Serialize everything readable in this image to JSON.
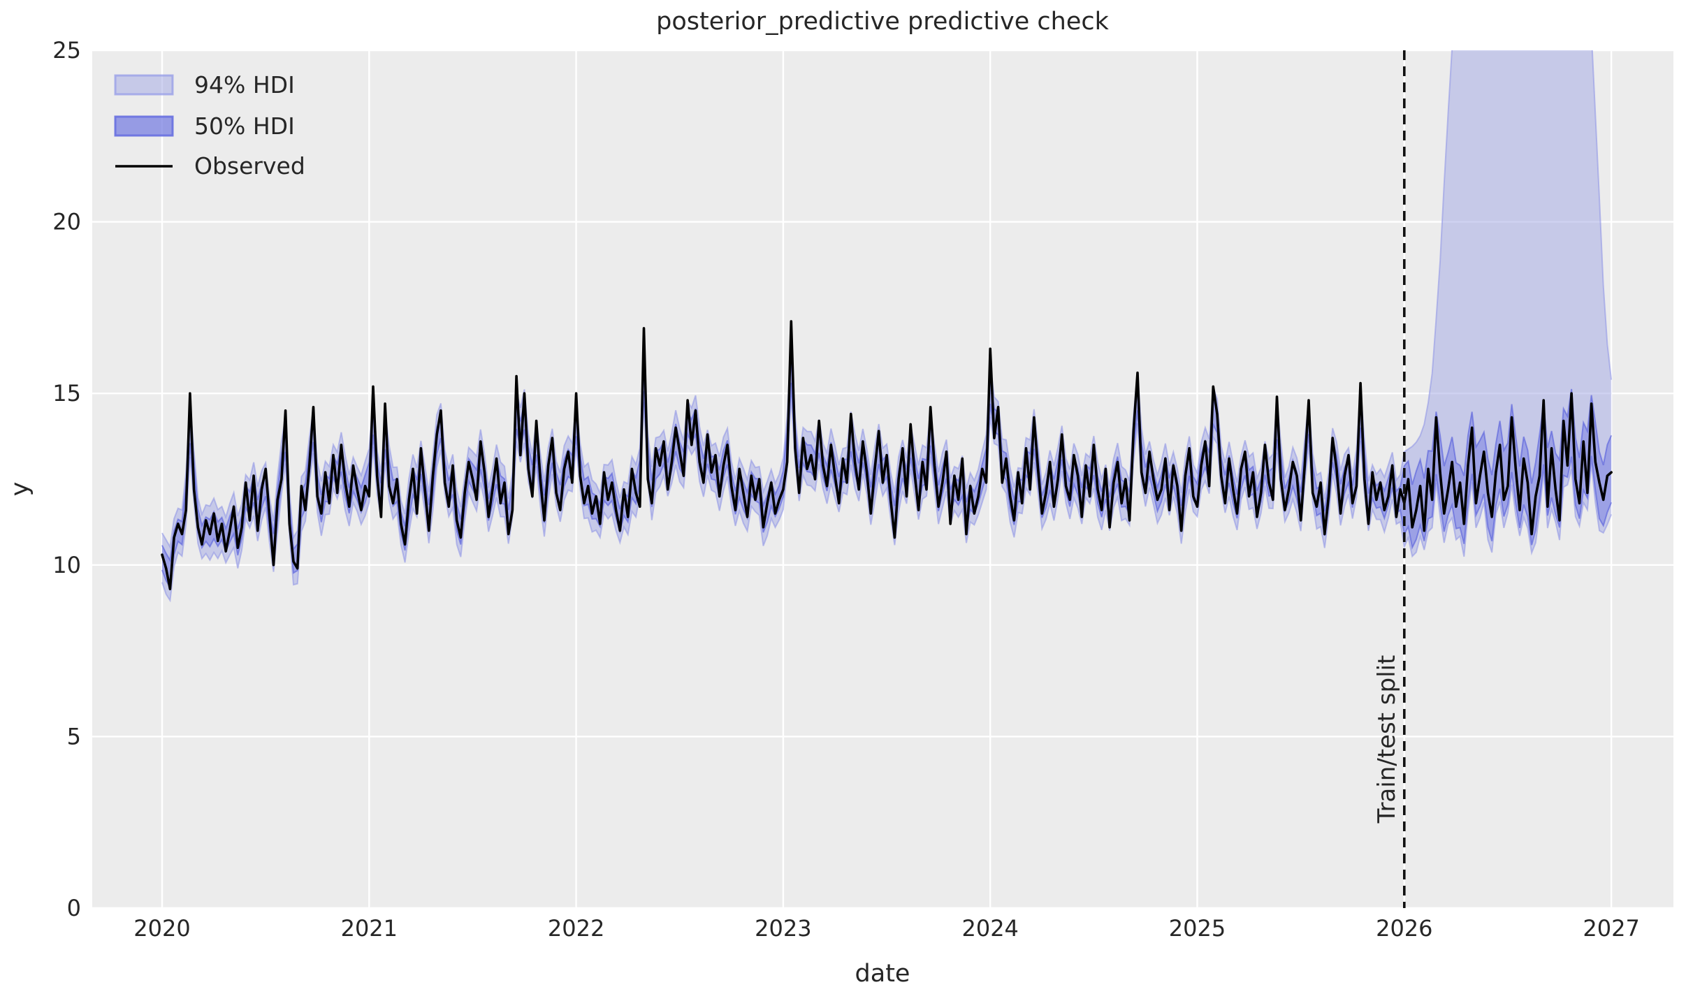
{
  "title": "posterior_predictive predictive check",
  "axes": {
    "xlabel": "date",
    "ylabel": "y",
    "x_ticks": [
      2020,
      2021,
      2022,
      2023,
      2024,
      2025,
      2026,
      2027
    ],
    "y_ticks": [
      0,
      5,
      10,
      15,
      20,
      25
    ],
    "ylim": [
      0,
      25
    ],
    "xlim": [
      2019.66,
      2027.3
    ],
    "grid": true
  },
  "legend": {
    "position": "upper-left",
    "items": [
      {
        "label": "94% HDI",
        "type": "patch"
      },
      {
        "label": "50% HDI",
        "type": "patch"
      },
      {
        "label": "Observed",
        "type": "line"
      }
    ]
  },
  "split": {
    "x": 2026.0,
    "label": "Train/test split",
    "style": "dashed-black"
  },
  "colors": {
    "plot_bg": "#ececec",
    "grid": "#ffffff",
    "hdi94_fill": "rgba(160,165,228,0.5)",
    "hdi94_edge": "rgba(140,146,230,0.55)",
    "hdi50_fill": "rgba(122,128,226,0.55)",
    "hdi50_edge": "rgba(90,98,220,0.65)",
    "observed": "#000000",
    "split_line": "#111111",
    "text": "#262626"
  },
  "chart_data": {
    "type": "line",
    "title": "posterior_predictive predictive check",
    "xlabel": "date",
    "ylabel": "y",
    "x_start": 2020.0,
    "x_step": 0.01923077,
    "series": [
      {
        "name": "Observed",
        "values": [
          10.3,
          9.9,
          9.3,
          10.8,
          11.2,
          10.9,
          11.6,
          15.0,
          12.2,
          11.1,
          10.6,
          11.3,
          10.9,
          11.5,
          10.7,
          11.2,
          10.4,
          11.0,
          11.7,
          10.5,
          11.1,
          12.4,
          11.3,
          12.6,
          11.0,
          12.2,
          12.8,
          11.4,
          10.0,
          11.9,
          12.5,
          14.5,
          11.2,
          10.1,
          9.9,
          12.3,
          11.6,
          12.9,
          14.6,
          12.0,
          11.5,
          12.7,
          11.8,
          13.2,
          12.1,
          13.5,
          12.4,
          11.7,
          12.9,
          12.2,
          11.6,
          12.3,
          12.0,
          15.2,
          12.6,
          11.4,
          14.7,
          12.3,
          11.8,
          12.5,
          11.2,
          10.6,
          11.9,
          12.8,
          11.5,
          13.4,
          12.2,
          11.0,
          12.6,
          13.8,
          14.5,
          12.4,
          11.7,
          12.9,
          11.3,
          10.8,
          12.1,
          13.0,
          12.5,
          11.9,
          13.6,
          12.7,
          11.4,
          12.2,
          13.1,
          11.8,
          12.4,
          10.9,
          11.6,
          15.5,
          13.2,
          15.0,
          12.8,
          12.0,
          14.2,
          12.5,
          11.3,
          12.9,
          13.7,
          12.1,
          11.6,
          12.8,
          13.3,
          12.4,
          15.0,
          12.6,
          11.8,
          12.3,
          11.5,
          12.0,
          11.2,
          12.7,
          11.9,
          12.4,
          11.6,
          11.0,
          12.2,
          11.4,
          12.8,
          12.1,
          11.7,
          16.9,
          12.5,
          11.8,
          13.4,
          12.9,
          13.6,
          12.2,
          13.0,
          14.0,
          13.3,
          12.6,
          14.8,
          13.5,
          14.5,
          13.0,
          12.4,
          13.8,
          12.7,
          13.2,
          12.0,
          12.9,
          13.5,
          12.3,
          11.6,
          12.8,
          12.1,
          11.4,
          12.6,
          11.9,
          12.5,
          11.1,
          11.8,
          12.4,
          11.5,
          11.9,
          12.2,
          13.0,
          17.1,
          13.4,
          12.1,
          13.7,
          12.8,
          13.2,
          12.5,
          14.2,
          12.9,
          12.3,
          13.5,
          12.6,
          11.8,
          13.1,
          12.4,
          14.4,
          13.0,
          12.2,
          13.6,
          12.7,
          11.5,
          12.8,
          13.9,
          12.4,
          13.2,
          11.9,
          10.8,
          12.5,
          13.4,
          12.0,
          14.1,
          12.7,
          11.6,
          13.0,
          12.2,
          14.6,
          12.9,
          11.7,
          12.4,
          13.3,
          11.2,
          12.6,
          11.9,
          13.1,
          10.9,
          12.3,
          11.5,
          12.0,
          12.8,
          12.4,
          16.3,
          13.7,
          14.6,
          12.4,
          13.1,
          12.0,
          11.3,
          12.7,
          11.8,
          13.4,
          12.2,
          14.3,
          12.8,
          11.5,
          12.1,
          13.0,
          11.7,
          12.5,
          13.8,
          12.3,
          11.9,
          13.2,
          12.6,
          11.4,
          12.9,
          12.0,
          13.5,
          12.2,
          11.6,
          12.8,
          11.1,
          12.4,
          13.0,
          11.8,
          12.5,
          11.3,
          13.9,
          15.6,
          12.7,
          12.1,
          13.3,
          12.5,
          11.9,
          12.2,
          13.1,
          11.6,
          12.9,
          12.3,
          11.0,
          12.6,
          13.4,
          12.0,
          11.7,
          12.9,
          13.6,
          12.3,
          15.2,
          14.4,
          12.6,
          11.8,
          13.1,
          12.2,
          11.5,
          12.8,
          13.3,
          12.0,
          12.7,
          11.4,
          12.1,
          13.5,
          12.4,
          11.9,
          14.9,
          12.5,
          11.6,
          12.2,
          13.0,
          12.6,
          11.3,
          12.9,
          14.8,
          12.1,
          11.7,
          12.4,
          10.9,
          12.0,
          13.7,
          12.8,
          11.5,
          12.6,
          13.2,
          11.8,
          12.3,
          15.3,
          12.5,
          11.2,
          12.7,
          11.9,
          12.4,
          11.6,
          12.0,
          12.9,
          11.4,
          12.2,
          11.8,
          12.5,
          11.1,
          11.6,
          12.3,
          11.0,
          12.8,
          11.9,
          14.3,
          12.7,
          11.5,
          12.2,
          13.0,
          11.7,
          12.4,
          11.2,
          12.9,
          14.0,
          11.8,
          12.6,
          13.3,
          12.1,
          11.4,
          12.7,
          13.5,
          11.9,
          12.3,
          14.3,
          12.8,
          11.6,
          13.1,
          12.4,
          10.9,
          12.0,
          12.6,
          14.8,
          11.7,
          13.4,
          12.2,
          11.3,
          14.2,
          12.9,
          15.0,
          12.5,
          11.8,
          13.6,
          12.1,
          14.7,
          13.0,
          12.4,
          11.9,
          12.6,
          12.7
        ]
      }
    ],
    "hdi94": {
      "label": "94% HDI",
      "halfwidth_train_upper": 0.62,
      "halfwidth_train_lower": 0.66,
      "halfwidth_wobble": 0.16,
      "lower_offset_test": 1.05,
      "upper_test_breakpoints": [
        [
          2026.0,
          13.3
        ],
        [
          2026.05,
          13.5
        ],
        [
          2026.09,
          13.9
        ],
        [
          2026.13,
          15.2
        ],
        [
          2026.17,
          18.5
        ],
        [
          2026.2,
          22.0
        ],
        [
          2026.24,
          26.0
        ],
        [
          2026.35,
          29.0
        ],
        [
          2026.6,
          30.0
        ],
        [
          2026.85,
          29.0
        ],
        [
          2026.9,
          26.0
        ],
        [
          2026.94,
          21.0
        ],
        [
          2026.97,
          17.0
        ],
        [
          2027.0,
          15.4
        ]
      ]
    },
    "hdi50": {
      "label": "50% HDI",
      "halfwidth_train_upper": 0.3,
      "halfwidth_train_lower": 0.34,
      "halfwidth_test_upper": 0.9,
      "halfwidth_test_lower": 0.85
    },
    "train_test_split_x": 2026.0
  }
}
